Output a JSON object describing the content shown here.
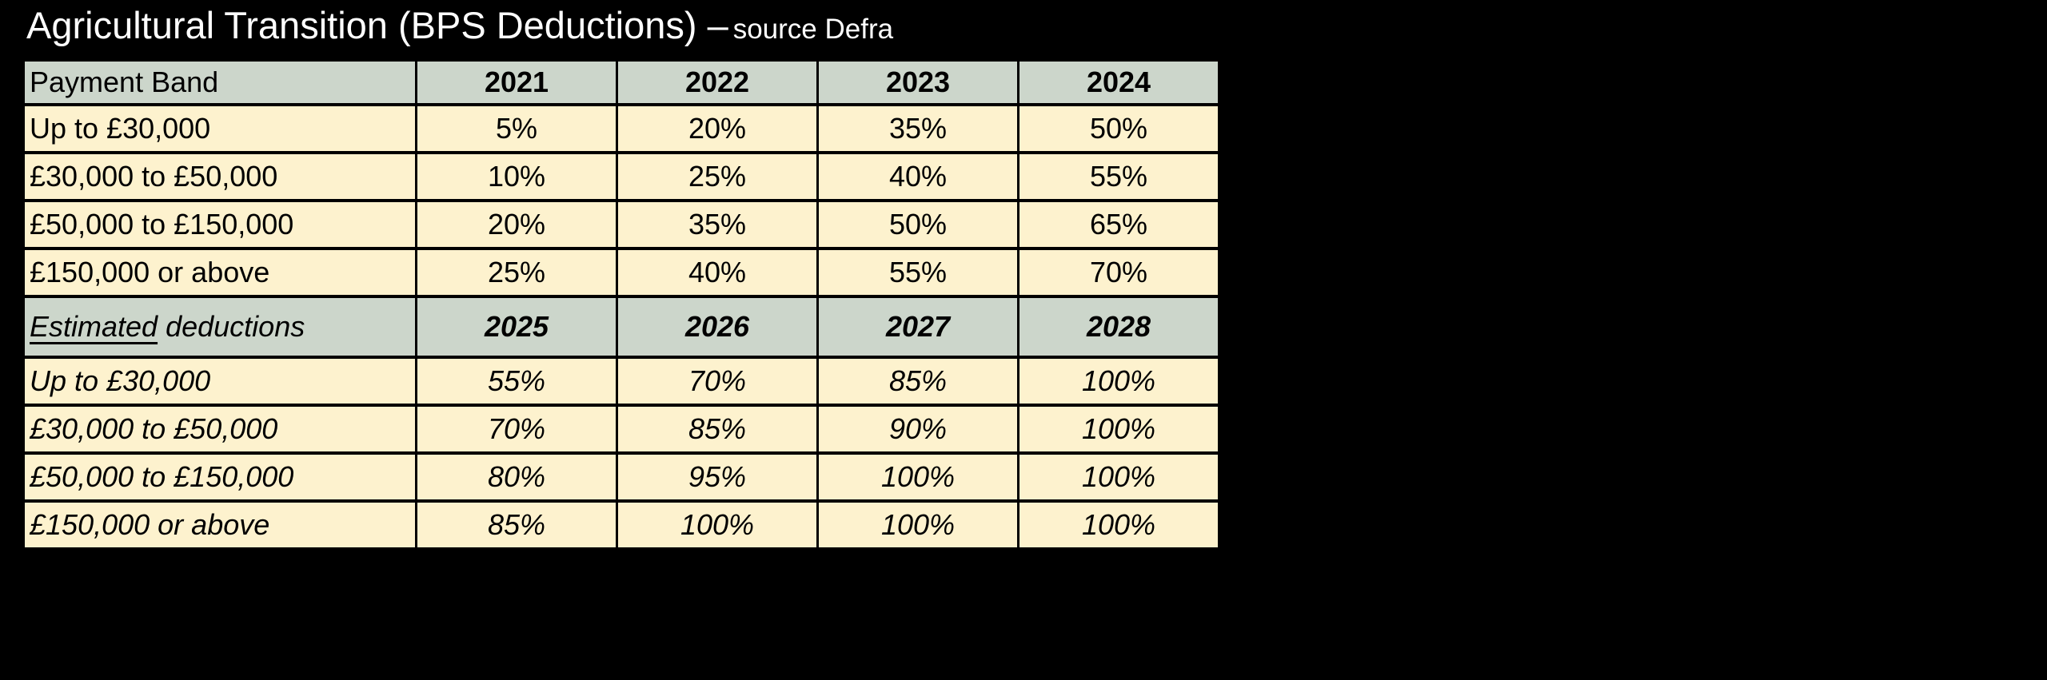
{
  "title": {
    "main": "Agricultural Transition (BPS Deductions) –",
    "suffix": "source Defra"
  },
  "colors": {
    "background": "#000000",
    "title_text": "#ffffff",
    "header_fill": "#ccd6cb",
    "row_fill": "#fdf2ce",
    "grid_border": "#000000",
    "cell_text": "#000000"
  },
  "table": {
    "sections": [
      {
        "header": {
          "label": "Payment Band",
          "years": [
            "2021",
            "2022",
            "2023",
            "2024"
          ]
        },
        "rows": [
          {
            "band": "Up to £30,000",
            "values": [
              "5%",
              "20%",
              "35%",
              "50%"
            ]
          },
          {
            "band": "£30,000 to £50,000",
            "values": [
              "10%",
              "25%",
              "40%",
              "55%"
            ]
          },
          {
            "band": "£50,000 to £150,000",
            "values": [
              "20%",
              "35%",
              "50%",
              "65%"
            ]
          },
          {
            "band": "£150,000 or above",
            "values": [
              "25%",
              "40%",
              "55%",
              "70%"
            ]
          }
        ]
      },
      {
        "header": {
          "label_underlined": "Estimated",
          "label_rest": " deductions",
          "years": [
            "2025",
            "2026",
            "2027",
            "2028"
          ]
        },
        "rows": [
          {
            "band": "Up to £30,000",
            "values": [
              "55%",
              "70%",
              "85%",
              "100%"
            ]
          },
          {
            "band": "£30,000 to £50,000",
            "values": [
              "70%",
              "85%",
              "90%",
              "100%"
            ]
          },
          {
            "band": "£50,000 to £150,000",
            "values": [
              "80%",
              "95%",
              "100%",
              "100%"
            ]
          },
          {
            "band": "£150,000 or above",
            "values": [
              "85%",
              "100%",
              "100%",
              "100%"
            ]
          }
        ]
      }
    ]
  }
}
